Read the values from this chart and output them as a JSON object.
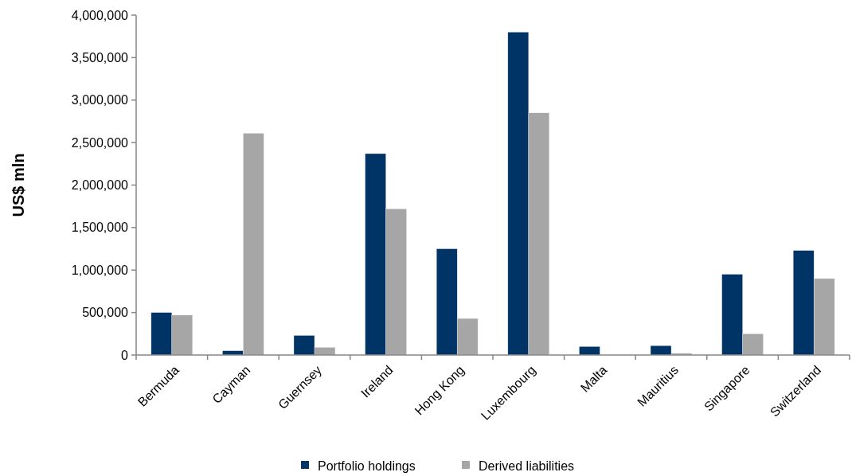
{
  "chart_data": {
    "type": "bar",
    "ylabel": "US$ mln",
    "categories": [
      "Bermuda",
      "Cayman",
      "Guernsey",
      "Ireland",
      "Hong Kong",
      "Luxembourg",
      "Malta",
      "Mauritius",
      "Singapore",
      "Switzerland"
    ],
    "series": [
      {
        "name": "Portfolio holdings",
        "color": "#003366",
        "values": [
          500000,
          50000,
          230000,
          2370000,
          1250000,
          3800000,
          100000,
          110000,
          950000,
          1230000
        ]
      },
      {
        "name": "Derived liabilities",
        "color": "#a6a6a6",
        "values": [
          470000,
          2610000,
          90000,
          1720000,
          430000,
          2850000,
          null,
          20000,
          250000,
          900000
        ]
      }
    ],
    "ylim": [
      0,
      4000000
    ],
    "yticks": [
      {
        "value": 0,
        "label": "0"
      },
      {
        "value": 500000,
        "label": "500,000"
      },
      {
        "value": 1000000,
        "label": "1,000,000"
      },
      {
        "value": 1500000,
        "label": "1,500,000"
      },
      {
        "value": 2000000,
        "label": "2,000,000"
      },
      {
        "value": 2500000,
        "label": "2,500,000"
      },
      {
        "value": 3000000,
        "label": "3,000,000"
      },
      {
        "value": 3500000,
        "label": "3,500,000"
      },
      {
        "value": 4000000,
        "label": "4,000,000"
      }
    ],
    "grid": false,
    "legend": "bottom"
  }
}
